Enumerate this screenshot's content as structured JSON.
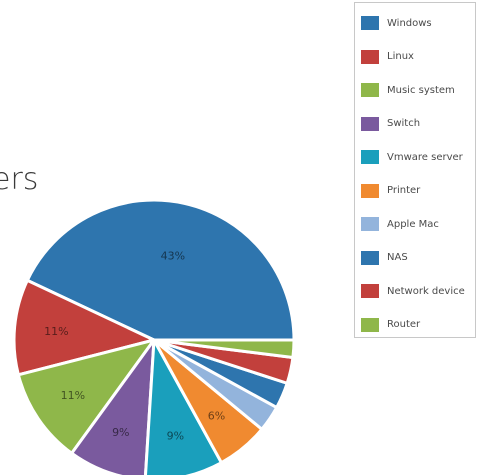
{
  "title_fragment": "ers",
  "chart_data": {
    "type": "pie",
    "title": "",
    "categories": [
      "Windows",
      "Linux",
      "Music system",
      "Switch",
      "Vmware server",
      "Printer",
      "Apple Mac",
      "NAS",
      "Network device",
      "Router"
    ],
    "values": [
      43,
      11,
      11,
      9,
      9,
      6,
      3,
      3,
      3,
      2
    ],
    "data_labels": [
      "43%",
      "11%",
      "11%",
      "9%",
      "9%",
      "6%",
      "",
      "",
      "",
      ""
    ],
    "colors": [
      "#2e75ae",
      "#c2403c",
      "#8fb74a",
      "#7a5a9e",
      "#1a9fbc",
      "#f08a30",
      "#93b4dc",
      "#2e75ae",
      "#c2403c",
      "#8fb74a"
    ],
    "legend_position": "top-right"
  }
}
